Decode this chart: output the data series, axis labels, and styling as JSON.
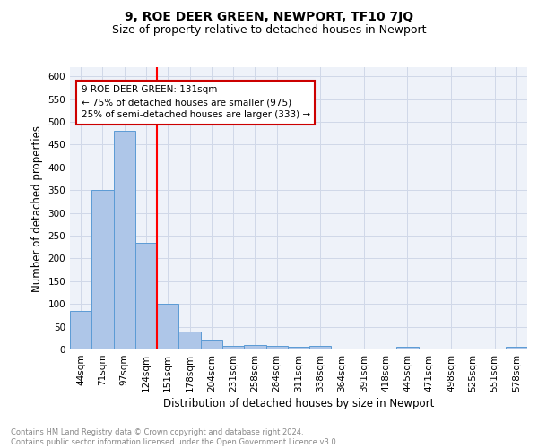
{
  "title": "9, ROE DEER GREEN, NEWPORT, TF10 7JQ",
  "subtitle": "Size of property relative to detached houses in Newport",
  "xlabel": "Distribution of detached houses by size in Newport",
  "ylabel": "Number of detached properties",
  "bar_labels": [
    "44sqm",
    "71sqm",
    "97sqm",
    "124sqm",
    "151sqm",
    "178sqm",
    "204sqm",
    "231sqm",
    "258sqm",
    "284sqm",
    "311sqm",
    "338sqm",
    "364sqm",
    "391sqm",
    "418sqm",
    "445sqm",
    "471sqm",
    "498sqm",
    "525sqm",
    "551sqm",
    "578sqm"
  ],
  "bar_values": [
    84,
    350,
    480,
    234,
    100,
    40,
    20,
    8,
    10,
    8,
    5,
    8,
    0,
    0,
    0,
    6,
    0,
    0,
    0,
    0,
    6
  ],
  "bar_color": "#aec6e8",
  "bar_edge_color": "#5b9bd5",
  "grid_color": "#d0d8e8",
  "background_color": "#eef2f9",
  "red_line_x": 3.5,
  "annotation_text": "9 ROE DEER GREEN: 131sqm\n← 75% of detached houses are smaller (975)\n25% of semi-detached houses are larger (333) →",
  "annotation_box_color": "#ffffff",
  "annotation_box_edge": "#cc0000",
  "ylim": [
    0,
    620
  ],
  "yticks": [
    0,
    50,
    100,
    150,
    200,
    250,
    300,
    350,
    400,
    450,
    500,
    550,
    600
  ],
  "footnote": "Contains HM Land Registry data © Crown copyright and database right 2024.\nContains public sector information licensed under the Open Government Licence v3.0.",
  "title_fontsize": 10,
  "subtitle_fontsize": 9,
  "ylabel_fontsize": 8.5,
  "xlabel_fontsize": 8.5,
  "tick_fontsize": 7.5
}
